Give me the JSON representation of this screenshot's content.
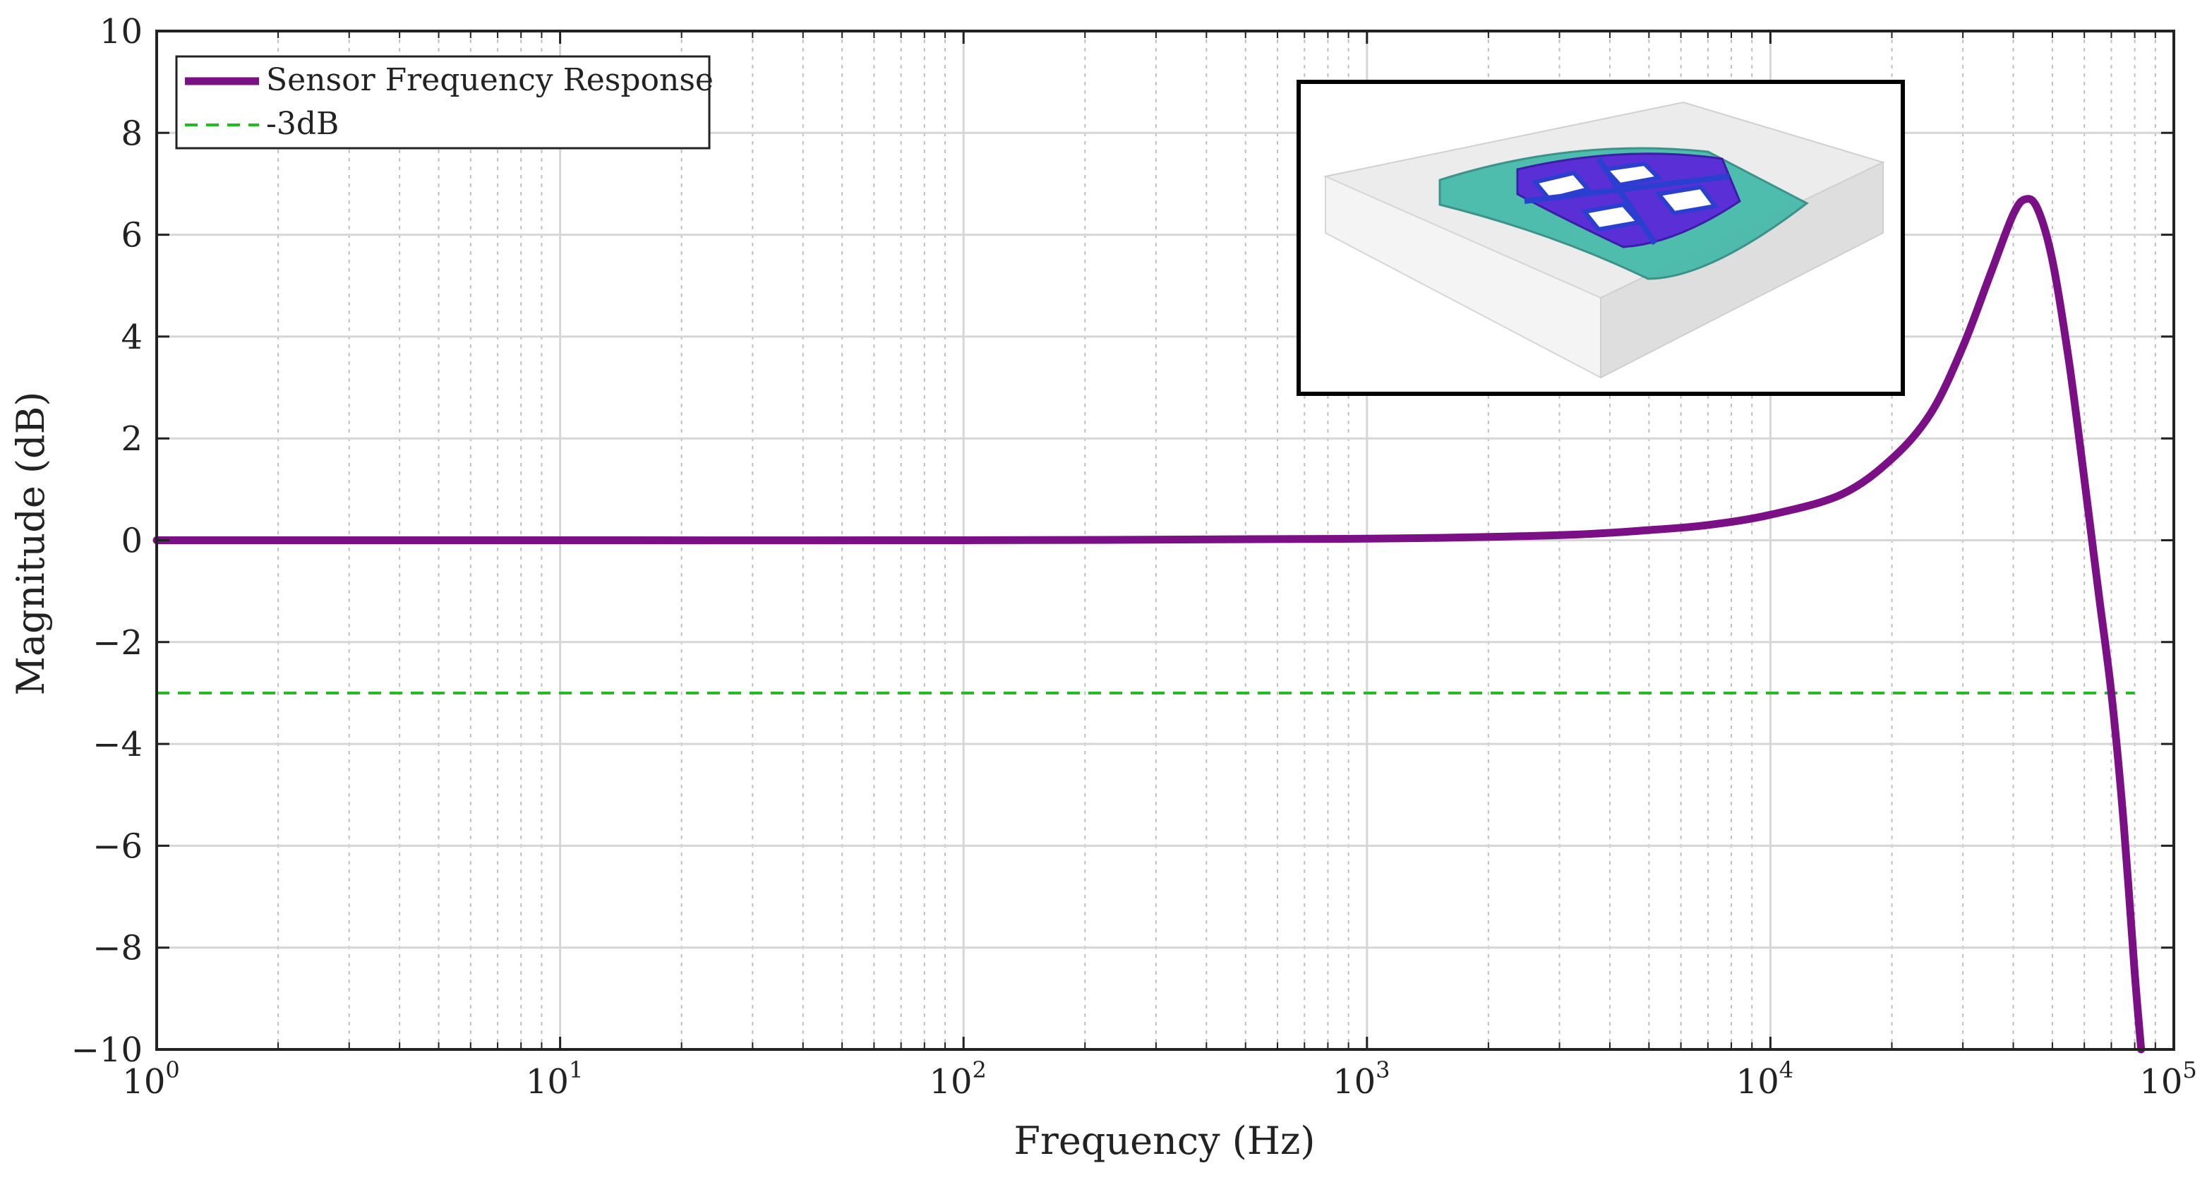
{
  "chart_data": {
    "type": "line",
    "title": "",
    "xlabel": "Frequency (Hz)",
    "ylabel": "Magnitude (dB)",
    "xscale": "log",
    "xlim": [
      1,
      100000
    ],
    "ylim": [
      -10,
      10
    ],
    "grid": true,
    "legend_position": "top-left",
    "x_ticks": [
      {
        "base": "10",
        "exp": "0",
        "value": 1
      },
      {
        "base": "10",
        "exp": "1",
        "value": 10
      },
      {
        "base": "10",
        "exp": "2",
        "value": 100
      },
      {
        "base": "10",
        "exp": "3",
        "value": 1000
      },
      {
        "base": "10",
        "exp": "4",
        "value": 10000
      },
      {
        "base": "10",
        "exp": "5",
        "value": 100000
      }
    ],
    "y_ticks": [
      {
        "label": "10",
        "value": 10
      },
      {
        "label": "8",
        "value": 8
      },
      {
        "label": "6",
        "value": 6
      },
      {
        "label": "4",
        "value": 4
      },
      {
        "label": "2",
        "value": 2
      },
      {
        "label": "0",
        "value": 0
      },
      {
        "label": "−2",
        "value": -2
      },
      {
        "label": "−4",
        "value": -4
      },
      {
        "label": "−6",
        "value": -6
      },
      {
        "label": "−8",
        "value": -8
      },
      {
        "label": "−10",
        "value": -10
      }
    ],
    "series": [
      {
        "name": "Sensor Frequency Response",
        "color": "#7a0f86",
        "style": "solid",
        "x": [
          1,
          10,
          100,
          1000,
          3000,
          5000,
          7000,
          10000,
          15000,
          20000,
          25000,
          30000,
          35000,
          40000,
          43000,
          46000,
          50000,
          55000,
          60000,
          65000,
          70000,
          75000,
          80000,
          83000
        ],
        "y": [
          0,
          0,
          0,
          0.03,
          0.1,
          0.2,
          0.3,
          0.5,
          0.9,
          1.6,
          2.5,
          3.8,
          5.2,
          6.4,
          6.7,
          6.5,
          5.5,
          3.5,
          1.2,
          -1.0,
          -3.0,
          -5.5,
          -8.5,
          -10
        ]
      },
      {
        "name": "-3dB",
        "color": "#22bb22",
        "style": "dashed",
        "x": [
          1,
          80000
        ],
        "y": [
          -3,
          -3
        ]
      }
    ],
    "inset": {
      "description_name": "sensor-3d-model-image",
      "colors": {
        "frame": "#000000",
        "package": "#e6e6e6",
        "die": "#3fb8a8",
        "proof_mass": "#5a2fd6",
        "paddle": "#2a3fd0"
      }
    }
  }
}
